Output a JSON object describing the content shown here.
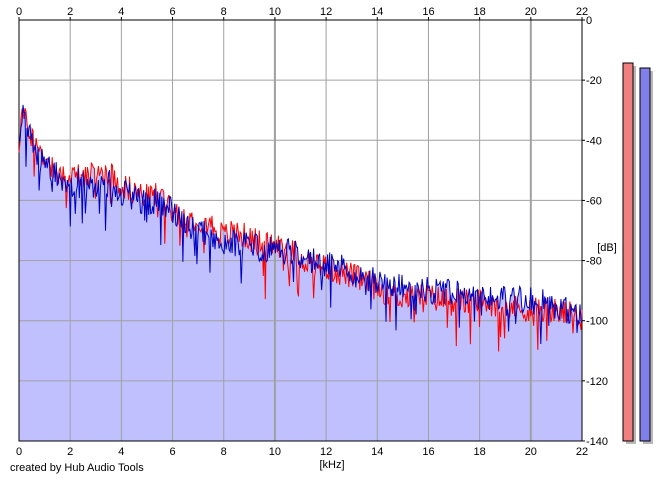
{
  "footer": {
    "credit": "created by Hub Audio Tools"
  },
  "colors": {
    "fill": "#c0c0ff",
    "ch_red": "#ff0000",
    "ch_blue": "#0000c0",
    "grid": "#a0a0a0",
    "meter_left": "#f08080",
    "meter_right": "#8080e8"
  },
  "chart_data": {
    "type": "line",
    "title": "",
    "xlabel": "[kHz]",
    "ylabel": "[dB]",
    "xlim": [
      0,
      22
    ],
    "ylim": [
      -140,
      0
    ],
    "x_ticks": [
      "0",
      "2",
      "4",
      "6",
      "8",
      "10",
      "12",
      "14",
      "16",
      "18",
      "20",
      "22"
    ],
    "y_ticks": [
      "0",
      "-20",
      "-40",
      "-60",
      "-80",
      "-100",
      "-120",
      "-140"
    ],
    "grid": true,
    "series": [
      {
        "color": "#ff0000",
        "x": [
          0,
          0.1,
          0.2,
          0.4,
          0.6,
          0.8,
          1,
          1.5,
          2,
          2.5,
          3,
          3.5,
          4,
          4.5,
          5,
          5.5,
          6,
          6.5,
          7,
          7.5,
          8,
          8.5,
          9,
          9.5,
          10,
          10.5,
          11,
          11.5,
          12,
          12.5,
          13,
          13.5,
          14,
          14.5,
          15,
          15.5,
          16,
          16.5,
          17,
          17.5,
          18,
          18.5,
          19,
          19.5,
          20,
          20.5,
          21,
          21.5,
          22
        ],
        "values": [
          -42,
          -30,
          -33,
          -36,
          -40,
          -44,
          -46,
          -50,
          -53,
          -51,
          -52,
          -50,
          -55,
          -57,
          -59,
          -58,
          -62,
          -66,
          -66,
          -68,
          -72,
          -70,
          -73,
          -74,
          -75,
          -76,
          -79,
          -81,
          -82,
          -84,
          -85,
          -87,
          -89,
          -91,
          -92,
          -92,
          -92,
          -93,
          -93,
          -94,
          -94,
          -94,
          -95,
          -96,
          -96,
          -96,
          -97,
          -98,
          -99
        ]
      },
      {
        "color": "#0000c0",
        "x": [
          0,
          0.1,
          0.2,
          0.4,
          0.6,
          0.8,
          1,
          1.5,
          2,
          2.5,
          3,
          3.5,
          4,
          4.5,
          5,
          5.5,
          6,
          6.5,
          7,
          7.5,
          8,
          8.5,
          9,
          9.5,
          10,
          10.5,
          11,
          11.5,
          12,
          12.5,
          13,
          13.5,
          14,
          14.5,
          15,
          15.5,
          16,
          16.5,
          17,
          17.5,
          18,
          18.5,
          19,
          19.5,
          20,
          20.5,
          21,
          21.5,
          22
        ],
        "values": [
          -42,
          -31,
          -34,
          -38,
          -42,
          -46,
          -48,
          -52,
          -55,
          -53,
          -55,
          -54,
          -57,
          -59,
          -61,
          -60,
          -64,
          -69,
          -70,
          -72,
          -75,
          -74,
          -75,
          -76,
          -76,
          -77,
          -78,
          -80,
          -81,
          -82,
          -84,
          -86,
          -87,
          -88,
          -89,
          -89,
          -90,
          -90,
          -91,
          -91,
          -92,
          -92,
          -93,
          -93,
          -93,
          -94,
          -95,
          -97,
          -99
        ]
      }
    ]
  }
}
